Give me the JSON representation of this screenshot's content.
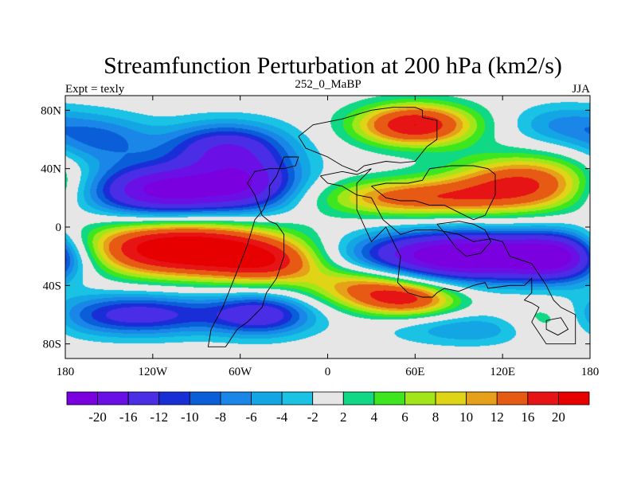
{
  "chart_data": {
    "type": "heatmap",
    "title": "Streamfunction Perturbation at 200 hPa (km2/s)",
    "left_label": "Expt = texly",
    "center_label": "252_0_MaBP",
    "right_label": "JJA",
    "xlim": [
      -180,
      180
    ],
    "ylim": [
      -90,
      90
    ],
    "x_ticks": [
      {
        "value": -180,
        "label": "180"
      },
      {
        "value": -120,
        "label": "120W"
      },
      {
        "value": -60,
        "label": "60W"
      },
      {
        "value": 0,
        "label": "0"
      },
      {
        "value": 60,
        "label": "60E"
      },
      {
        "value": 120,
        "label": "120E"
      },
      {
        "value": 180,
        "label": "180"
      }
    ],
    "y_ticks": [
      {
        "value": 80,
        "label": "80N"
      },
      {
        "value": 40,
        "label": "40N"
      },
      {
        "value": 0,
        "label": "0"
      },
      {
        "value": -40,
        "label": "40S"
      },
      {
        "value": -80,
        "label": "80S"
      }
    ],
    "levels": [
      -20,
      -16,
      -12,
      -10,
      -8,
      -6,
      -4,
      -2,
      2,
      4,
      6,
      8,
      10,
      12,
      16,
      20
    ],
    "level_labels": [
      "-20",
      "-16",
      "-12",
      "-10",
      "-8",
      "-6",
      "-4",
      "-2",
      "2",
      "4",
      "6",
      "8",
      "10",
      "12",
      "16",
      "20"
    ],
    "colors": [
      "#7a00e0",
      "#6a10e6",
      "#4a2ee6",
      "#1a2ed8",
      "#0a5ed8",
      "#1a86e8",
      "#14a6e4",
      "#1ac2e4",
      "#e6e6e6",
      "#10d884",
      "#3ee620",
      "#a2e61a",
      "#e0d416",
      "#e6a01a",
      "#e65a14",
      "#e61414",
      "#e60000"
    ],
    "field_centers": [
      {
        "lon": -100,
        "lat": -15,
        "amp": 26,
        "slon": 50,
        "slat": 13
      },
      {
        "lon": -40,
        "lat": -25,
        "amp": 12,
        "slon": 28,
        "slat": 10
      },
      {
        "lon": 25,
        "lat": -40,
        "amp": 12,
        "slon": 30,
        "slat": 10
      },
      {
        "lon": 55,
        "lat": -50,
        "amp": 14,
        "slon": 25,
        "slat": 8
      },
      {
        "lon": 95,
        "lat": -20,
        "amp": -26,
        "slon": 55,
        "slat": 12
      },
      {
        "lon": 160,
        "lat": -20,
        "amp": -14,
        "slon": 22,
        "slat": 12
      },
      {
        "lon": -110,
        "lat": 25,
        "amp": -22,
        "slon": 40,
        "slat": 13
      },
      {
        "lon": -50,
        "lat": 30,
        "amp": -12,
        "slon": 25,
        "slat": 14
      },
      {
        "lon": -70,
        "lat": 55,
        "amp": -14,
        "slon": 30,
        "slat": 12
      },
      {
        "lon": -155,
        "lat": 60,
        "amp": -8,
        "slon": 25,
        "slat": 12
      },
      {
        "lon": 60,
        "lat": 70,
        "amp": 20,
        "slon": 28,
        "slat": 10
      },
      {
        "lon": 60,
        "lat": 20,
        "amp": 14,
        "slon": 45,
        "slat": 9
      },
      {
        "lon": 135,
        "lat": 30,
        "amp": 16,
        "slon": 35,
        "slat": 13
      },
      {
        "lon": 160,
        "lat": 70,
        "amp": -6,
        "slon": 25,
        "slat": 10
      },
      {
        "lon": -130,
        "lat": -60,
        "amp": -14,
        "slon": 40,
        "slat": 10
      },
      {
        "lon": -45,
        "lat": -60,
        "amp": -14,
        "slon": 25,
        "slat": 10
      },
      {
        "lon": 150,
        "lat": -65,
        "amp": 6,
        "slon": 20,
        "slat": 10
      },
      {
        "lon": 100,
        "lat": -70,
        "amp": -6,
        "slon": 40,
        "slat": 8
      }
    ],
    "continent_outlines": [
      [
        [
          -20,
          62
        ],
        [
          -10,
          70
        ],
        [
          10,
          74
        ],
        [
          30,
          80
        ],
        [
          45,
          82
        ],
        [
          60,
          82
        ],
        [
          65,
          80
        ],
        [
          65,
          75
        ],
        [
          75,
          73
        ],
        [
          75,
          60
        ],
        [
          68,
          55
        ],
        [
          60,
          45
        ],
        [
          50,
          44
        ],
        [
          40,
          45
        ],
        [
          25,
          42
        ],
        [
          20,
          38
        ],
        [
          10,
          42
        ],
        [
          0,
          48
        ],
        [
          -5,
          50
        ],
        [
          -15,
          54
        ],
        [
          -20,
          62
        ]
      ],
      [
        [
          -30,
          48
        ],
        [
          -20,
          48
        ],
        [
          -22,
          42
        ],
        [
          -30,
          40
        ],
        [
          -40,
          40
        ],
        [
          -50,
          38
        ],
        [
          -55,
          30
        ],
        [
          -50,
          22
        ],
        [
          -45,
          8
        ],
        [
          -40,
          4
        ],
        [
          -35,
          2
        ],
        [
          -30,
          -5
        ],
        [
          -30,
          -20
        ],
        [
          -35,
          -35
        ],
        [
          -42,
          -45
        ],
        [
          -45,
          -55
        ],
        [
          -50,
          -60
        ],
        [
          -55,
          -65
        ],
        [
          -62,
          -70
        ],
        [
          -70,
          -82
        ],
        [
          -82,
          -82
        ],
        [
          -80,
          -70
        ],
        [
          -72,
          -55
        ],
        [
          -66,
          -40
        ],
        [
          -60,
          -25
        ],
        [
          -55,
          -12
        ],
        [
          -52,
          -2
        ],
        [
          -50,
          5
        ],
        [
          -44,
          12
        ],
        [
          -40,
          22
        ],
        [
          -40,
          28
        ],
        [
          -35,
          35
        ],
        [
          -30,
          48
        ]
      ],
      [
        [
          -5,
          35
        ],
        [
          10,
          38
        ],
        [
          20,
          36
        ],
        [
          30,
          40
        ],
        [
          20,
          30
        ],
        [
          20,
          12
        ],
        [
          30,
          -10
        ],
        [
          40,
          0
        ],
        [
          50,
          -20
        ],
        [
          48,
          -38
        ],
        [
          55,
          -45
        ],
        [
          65,
          -48
        ],
        [
          72,
          -48
        ],
        [
          75,
          -45
        ],
        [
          80,
          -42
        ],
        [
          90,
          -44
        ],
        [
          100,
          -40
        ],
        [
          108,
          -38
        ],
        [
          110,
          -42
        ],
        [
          125,
          -40
        ],
        [
          135,
          -40
        ],
        [
          140,
          -35
        ],
        [
          140,
          -45
        ],
        [
          135,
          -50
        ],
        [
          140,
          -52
        ],
        [
          145,
          -55
        ],
        [
          140,
          -65
        ],
        [
          150,
          -80
        ],
        [
          170,
          -80
        ],
        [
          170,
          -60
        ],
        [
          160,
          -55
        ],
        [
          155,
          -50
        ],
        [
          150,
          -40
        ],
        [
          140,
          -25
        ],
        [
          125,
          -20
        ],
        [
          120,
          -10
        ],
        [
          112,
          -8
        ],
        [
          100,
          -10
        ],
        [
          90,
          -5
        ],
        [
          75,
          -2
        ],
        [
          60,
          -2
        ],
        [
          50,
          -5
        ],
        [
          38,
          5
        ],
        [
          30,
          20
        ],
        [
          20,
          22
        ],
        [
          10,
          28
        ],
        [
          0,
          30
        ],
        [
          -5,
          35
        ]
      ],
      [
        [
          30,
          28
        ],
        [
          40,
          30
        ],
        [
          55,
          30
        ],
        [
          65,
          32
        ],
        [
          70,
          40
        ],
        [
          85,
          42
        ],
        [
          100,
          42
        ],
        [
          110,
          40
        ],
        [
          115,
          36
        ],
        [
          115,
          22
        ],
        [
          108,
          8
        ],
        [
          100,
          5
        ],
        [
          90,
          10
        ],
        [
          80,
          15
        ],
        [
          70,
          15
        ],
        [
          60,
          18
        ],
        [
          50,
          18
        ],
        [
          40,
          20
        ],
        [
          30,
          28
        ]
      ],
      [
        [
          75,
          2
        ],
        [
          90,
          4
        ],
        [
          100,
          2
        ],
        [
          108,
          -2
        ],
        [
          112,
          -10
        ],
        [
          105,
          -18
        ],
        [
          95,
          -20
        ],
        [
          88,
          -14
        ],
        [
          82,
          -6
        ],
        [
          75,
          2
        ]
      ],
      [
        [
          150,
          -64
        ],
        [
          160,
          -62
        ],
        [
          165,
          -70
        ],
        [
          158,
          -74
        ],
        [
          150,
          -70
        ],
        [
          150,
          -64
        ]
      ]
    ]
  }
}
